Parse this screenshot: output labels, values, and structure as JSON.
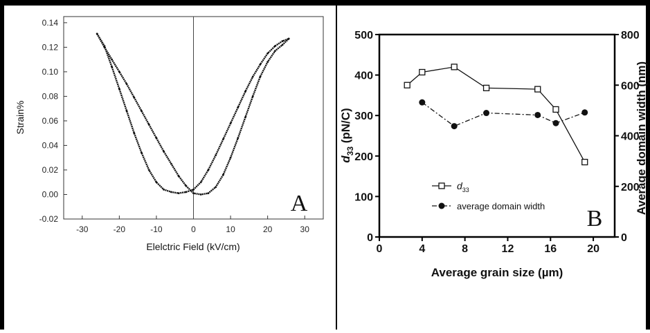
{
  "chart_data": [
    {
      "panel": "A",
      "type": "line",
      "panel_label": "A",
      "title": "",
      "xlabel": "Elelctric Field (kV/cm)",
      "ylabel": "Strain%",
      "xlim": [
        -35,
        35
      ],
      "ylim": [
        -0.02,
        0.145
      ],
      "xticks": [
        -30,
        -20,
        -10,
        0,
        10,
        20,
        30
      ],
      "yticks": [
        -0.02,
        0.0,
        0.02,
        0.04,
        0.06,
        0.08,
        0.1,
        0.12,
        0.14
      ],
      "ytick_labels": [
        "-0.02",
        "0.00",
        "0.02",
        "0.04",
        "0.06",
        "0.08",
        "0.10",
        "0.12",
        "0.14"
      ],
      "grid": false,
      "legend": "none",
      "zero_line": true,
      "series": [
        {
          "branch": "outer",
          "x": [
            -26,
            -24,
            -22,
            -20,
            -18,
            -16,
            -14,
            -12,
            -10,
            -8,
            -6,
            -4,
            -2,
            0,
            2,
            4,
            6,
            8,
            10,
            12,
            14,
            16,
            18,
            20,
            22,
            24,
            25.7
          ],
          "y": [
            0.131,
            0.12,
            0.11,
            0.1,
            0.09,
            0.079,
            0.068,
            0.057,
            0.046,
            0.035,
            0.025,
            0.015,
            0.007,
            0.001,
            0.0,
            0.001,
            0.006,
            0.016,
            0.03,
            0.046,
            0.063,
            0.08,
            0.096,
            0.108,
            0.117,
            0.122,
            0.127
          ]
        },
        {
          "branch": "inner",
          "x": [
            -26,
            -24,
            -22,
            -20,
            -18,
            -16,
            -14,
            -12,
            -10,
            -8,
            -6,
            -4,
            -2,
            0,
            2,
            4,
            6,
            8,
            10,
            12,
            14,
            16,
            18,
            20,
            22,
            24,
            25.7
          ],
          "y": [
            0.131,
            0.121,
            0.104,
            0.086,
            0.068,
            0.05,
            0.034,
            0.02,
            0.01,
            0.004,
            0.002,
            0.001,
            0.002,
            0.004,
            0.01,
            0.02,
            0.032,
            0.045,
            0.058,
            0.071,
            0.084,
            0.096,
            0.106,
            0.115,
            0.121,
            0.125,
            0.127
          ]
        }
      ]
    },
    {
      "panel": "B",
      "type": "line",
      "panel_label": "B",
      "title": "",
      "xlabel": "Average grain size (µm)",
      "ylabel_left_italic": "d",
      "ylabel_left_sub": "33",
      "ylabel_left_rest": " (pN/C)",
      "ylabel_right": "Average domain width (nm)",
      "xlim": [
        0,
        22
      ],
      "ylim_left": [
        0,
        500
      ],
      "ylim_right": [
        0,
        800
      ],
      "xticks": [
        0,
        4,
        8,
        12,
        16,
        20
      ],
      "yticks_left": [
        0,
        100,
        200,
        300,
        400,
        500
      ],
      "yticks_right": [
        0,
        200,
        400,
        600,
        800
      ],
      "grid": false,
      "legend": "middle-left",
      "series": [
        {
          "name_italic": "d",
          "name_sub": "33",
          "axis": "left",
          "marker": "open-square",
          "linestyle": "solid",
          "x": [
            2.6,
            4.0,
            7.0,
            10.0,
            14.8,
            16.5,
            19.2
          ],
          "y": [
            375,
            407,
            420,
            368,
            365,
            315,
            185
          ]
        },
        {
          "name": "average domain width",
          "axis": "right",
          "marker": "filled-circle",
          "linestyle": "dash-dot",
          "x": [
            4.0,
            7.0,
            10.0,
            14.8,
            16.5,
            19.2
          ],
          "y": [
            532,
            438,
            490,
            482,
            450,
            492
          ]
        }
      ]
    }
  ]
}
